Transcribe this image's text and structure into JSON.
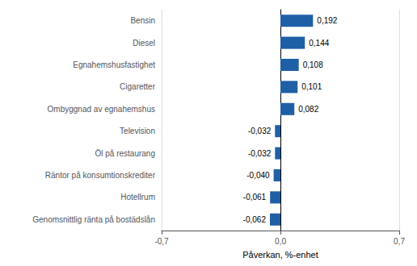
{
  "chart_data": {
    "type": "bar",
    "orientation": "horizontal",
    "categories": [
      "Genomsnittlig ränta på bostädslån",
      "Hotellrum",
      "Räntor på konsumtionskrediter",
      "Öl på restaurang",
      "Television",
      "Ombyggnad av egnahemshus",
      "Cigaretter",
      "Egnahemshusfastighet",
      "Diesel",
      "Bensin"
    ],
    "values": [
      -0.062,
      -0.061,
      -0.04,
      -0.032,
      -0.032,
      0.082,
      0.101,
      0.108,
      0.144,
      0.192
    ],
    "value_labels": [
      "-0,062",
      "-0,061",
      "-0,040",
      "-0,032",
      "-0,032",
      "0,082",
      "0,101",
      "0,108",
      "0,144",
      "0,192"
    ],
    "data_labels": true,
    "color": "#1f5fa6",
    "xlabel": "Påverkan, %-enhet",
    "xlim": [
      -0.7,
      0.7
    ],
    "xticks": [
      {
        "value": -0.7,
        "label": "-0,7"
      },
      {
        "value": 0.0,
        "label": "0,0"
      },
      {
        "value": 0.7,
        "label": "0,7"
      }
    ],
    "grid": true
  }
}
